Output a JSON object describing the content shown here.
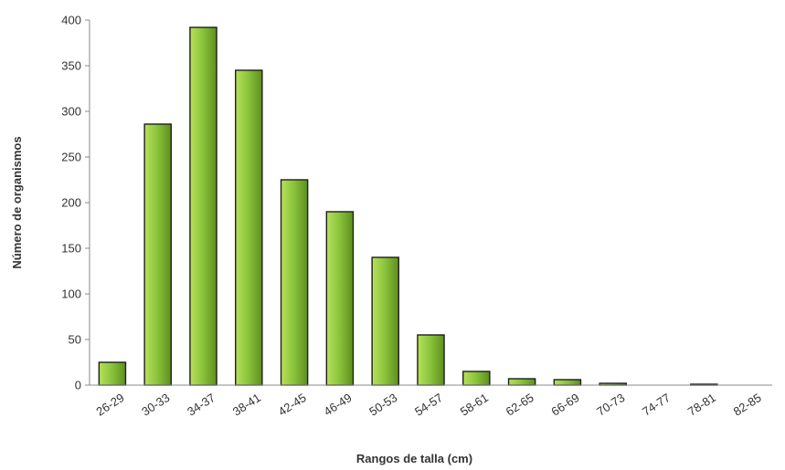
{
  "chart_data": {
    "type": "bar",
    "title": "",
    "xlabel": "Rangos de talla (cm)",
    "ylabel": "Número de organismos",
    "categories": [
      "26-29",
      "30-33",
      "34-37",
      "38-41",
      "42-45",
      "46-49",
      "50-53",
      "54-57",
      "58-61",
      "62-65",
      "66-69",
      "70-73",
      "74-77",
      "78-81",
      "82-85"
    ],
    "values": [
      25,
      286,
      392,
      345,
      225,
      190,
      140,
      55,
      15,
      7,
      6,
      2,
      0,
      1,
      0
    ],
    "ylim": [
      0,
      400
    ],
    "yticks": [
      0,
      50,
      100,
      150,
      200,
      250,
      300,
      350,
      400
    ],
    "grid": false,
    "legend": "none",
    "colors": {
      "bar_light": "#b8e05a",
      "bar_mid": "#8cc63e",
      "bar_dark": "#5e8f1c",
      "bar_outline": "#1e1e1e",
      "axis": "#8a8a8a"
    }
  }
}
